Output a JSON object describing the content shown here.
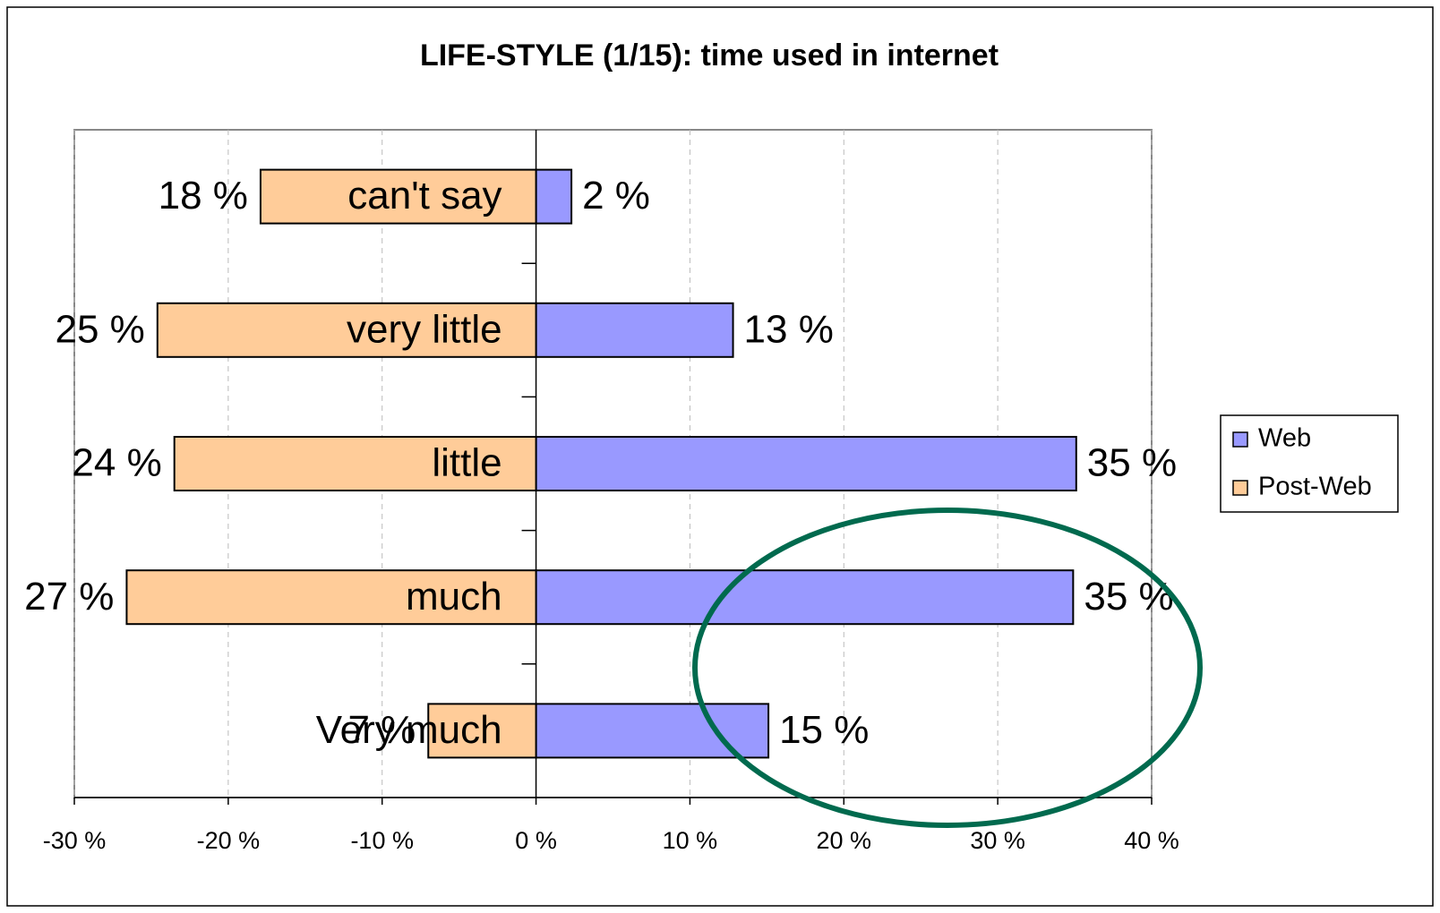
{
  "chart_data": {
    "type": "diverging-bar",
    "title": "LIFE-STYLE (1/15): time used in internet",
    "categories": [
      "can't say",
      "very little",
      "little",
      "much",
      "Very much"
    ],
    "series": [
      {
        "name": "Web",
        "color": "#9999ff",
        "values": [
          2.3,
          12.8,
          35.1,
          34.9,
          15.1
        ],
        "value_labels": [
          "2 %",
          "13 %",
          "35 %",
          "35 %",
          "15 %"
        ]
      },
      {
        "name": "Post-Web",
        "color": "#ffcc99",
        "values": [
          -17.9,
          -24.6,
          -23.5,
          -26.6,
          -7
        ],
        "value_labels": [
          "18 %",
          "25 %",
          "24 %",
          "27 %",
          "7 %"
        ]
      }
    ],
    "xlim": [
      -30,
      40
    ],
    "xticks": [
      {
        "value": -30,
        "label": "-30 %"
      },
      {
        "value": -20,
        "label": "-20 %"
      },
      {
        "value": -10,
        "label": "-10 %"
      },
      {
        "value": 0,
        "label": "0 %"
      },
      {
        "value": 10,
        "label": "10 %"
      },
      {
        "value": 20,
        "label": "20 %"
      },
      {
        "value": 30,
        "label": "30 %"
      },
      {
        "value": 40,
        "label": "40 %"
      }
    ],
    "grid": true,
    "legend": "right"
  }
}
